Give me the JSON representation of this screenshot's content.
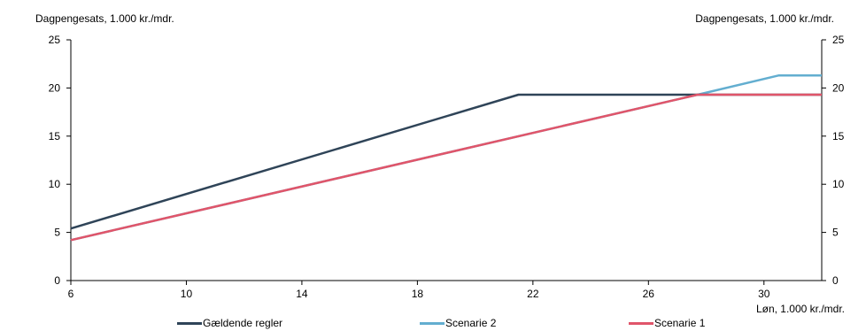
{
  "chart_data": {
    "type": "line",
    "ylabel_left": "Dagpengesats, 1.000 kr./mdr.",
    "ylabel_right": "Dagpengesats, 1.000 kr./mdr.",
    "xlabel": "Løn, 1.000 kr./mdr.",
    "xlim": [
      6,
      32
    ],
    "ylim": [
      0,
      25
    ],
    "x_ticks": [
      6,
      10,
      14,
      18,
      22,
      26,
      30
    ],
    "y_ticks": [
      0,
      5,
      10,
      15,
      20,
      25
    ],
    "grid": false,
    "legend_position": "bottom",
    "series": [
      {
        "name": "Gældende regler",
        "color": "#2f4458",
        "x": [
          6,
          21.5,
          32
        ],
        "y": [
          5.4,
          19.3,
          19.3
        ]
      },
      {
        "name": "Scenarie 2",
        "color": "#63aed0",
        "x": [
          6,
          27.7,
          30.5,
          32
        ],
        "y": [
          4.2,
          19.3,
          21.3,
          21.3
        ]
      },
      {
        "name": "Scenarie 1",
        "color": "#e0556a",
        "x": [
          6,
          27.7,
          32
        ],
        "y": [
          4.2,
          19.3,
          19.3
        ]
      }
    ],
    "legend_order": [
      0,
      1,
      2
    ]
  }
}
